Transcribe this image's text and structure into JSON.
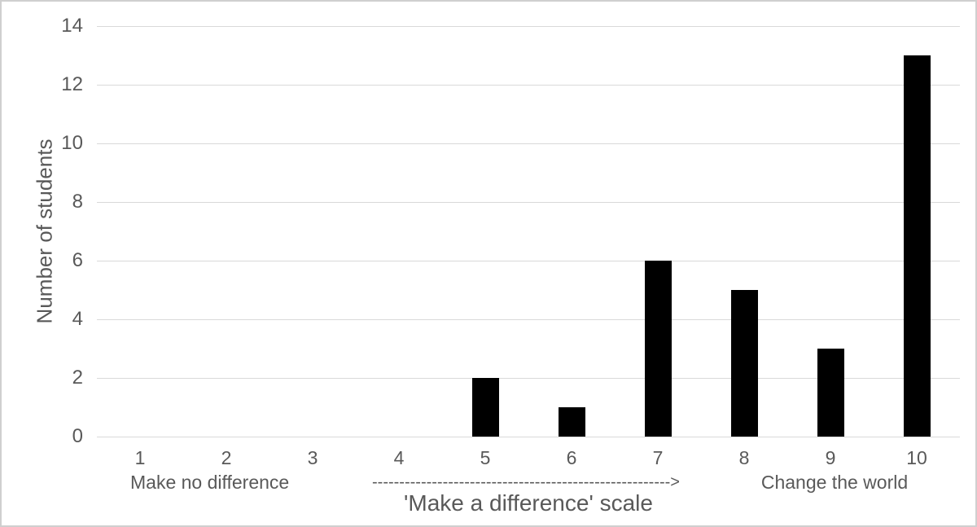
{
  "figure": {
    "background": "#ffffff",
    "border_color": "#cfcfcf"
  },
  "chart_data": {
    "type": "bar",
    "title": "",
    "categories": [
      "1",
      "2",
      "3",
      "4",
      "5",
      "6",
      "7",
      "8",
      "9",
      "10"
    ],
    "values": [
      0,
      0,
      0,
      0,
      2,
      1,
      6,
      5,
      3,
      13
    ],
    "xlabel": "'Make a difference' scale",
    "ylabel": "Number of students",
    "ylim": [
      0,
      14
    ],
    "yticks": [
      0,
      2,
      4,
      6,
      8,
      10,
      12,
      14
    ],
    "grid": "horizontal-only",
    "legend": "none",
    "bar_color": "#000000",
    "gridline_color": "#d9d9d9",
    "text_color": "#595959",
    "annotations": {
      "left_label": "Make no difference",
      "arrow_text": "------------------------------------------------------->",
      "right_label": "Change the world"
    }
  }
}
